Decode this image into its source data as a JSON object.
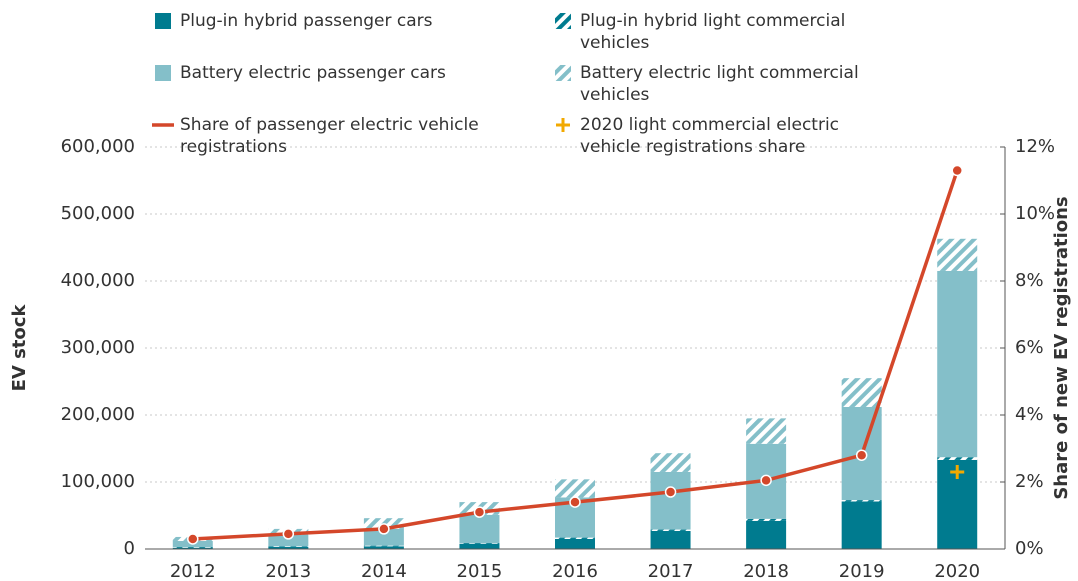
{
  "chart_data": {
    "type": "bar",
    "categories": [
      "2012",
      "2013",
      "2014",
      "2015",
      "2016",
      "2017",
      "2018",
      "2019",
      "2020"
    ],
    "series": [
      {
        "name": "Plug-in hybrid passenger cars",
        "type": "bar",
        "color": "#007b8f",
        "hatch": false,
        "values": [
          2000,
          3000,
          4000,
          8000,
          15000,
          27000,
          42000,
          71000,
          133000
        ]
      },
      {
        "name": "Plug-in hybrid light commercial vehicles",
        "type": "bar",
        "color": "#007b8f",
        "hatch": true,
        "values": [
          1000,
          1000,
          1000,
          1000,
          2000,
          2000,
          3000,
          2000,
          4000
        ]
      },
      {
        "name": "Battery electric passenger cars",
        "type": "bar",
        "color": "#84bfc9",
        "hatch": false,
        "values": [
          9000,
          17000,
          25000,
          42000,
          60000,
          86000,
          112000,
          139000,
          278000
        ]
      },
      {
        "name": "Battery electric light commercial vehicles",
        "type": "bar",
        "color": "#84bfc9",
        "hatch": true,
        "values": [
          6000,
          9000,
          16000,
          19000,
          27000,
          28000,
          38000,
          43000,
          48000
        ]
      },
      {
        "name": "Share of passenger electric vehicle registrations",
        "type": "line",
        "axis": "y2",
        "color": "#d4472a",
        "values": [
          0.3,
          0.45,
          0.6,
          1.1,
          1.4,
          1.7,
          2.05,
          2.8,
          11.3
        ]
      },
      {
        "name": "2020 light commercial electric vehicle registrations share",
        "type": "plus",
        "axis": "y2",
        "color": "#f2a900",
        "values": [
          null,
          null,
          null,
          null,
          null,
          null,
          null,
          null,
          2.3
        ]
      }
    ],
    "ylabel": "EV stock",
    "y2label": "Share of new EV registrations",
    "ylim": [
      0,
      600000
    ],
    "yticks": [
      0,
      {
        "value": 100000,
        "label": "100,000"
      },
      {
        "value": 200000,
        "label": "200,000"
      },
      {
        "value": 300000,
        "label": "300,000"
      },
      {
        "value": 400000,
        "label": "400,000"
      },
      {
        "value": 500000,
        "label": "500,000"
      },
      {
        "value": 600000,
        "label": "600,000"
      }
    ],
    "y2lim": [
      0,
      12
    ],
    "y2ticks": [
      {
        "value": 0,
        "label": "0%"
      },
      {
        "value": 2,
        "label": "2%"
      },
      {
        "value": 4,
        "label": "4%"
      },
      {
        "value": 6,
        "label": "6%"
      },
      {
        "value": 8,
        "label": "8%"
      },
      {
        "value": 10,
        "label": "10%"
      },
      {
        "value": 12,
        "label": "12%"
      }
    ],
    "grid": true,
    "legend": "top"
  }
}
